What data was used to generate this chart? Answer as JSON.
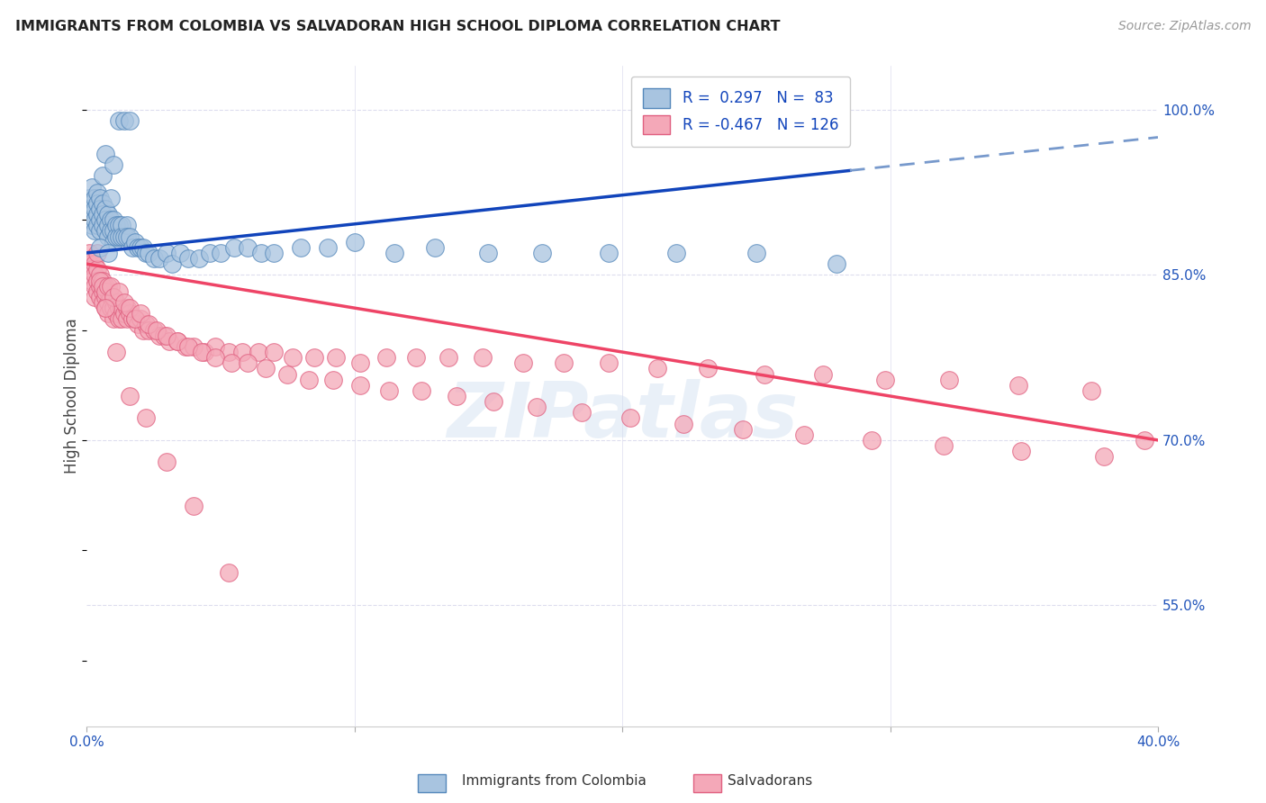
{
  "title": "IMMIGRANTS FROM COLOMBIA VS SALVADORAN HIGH SCHOOL DIPLOMA CORRELATION CHART",
  "source": "Source: ZipAtlas.com",
  "ylabel": "High School Diploma",
  "ytick_labels": [
    "55.0%",
    "70.0%",
    "85.0%",
    "100.0%"
  ],
  "ytick_vals": [
    0.55,
    0.7,
    0.85,
    1.0
  ],
  "xmin": 0.0,
  "xmax": 0.4,
  "ymin": 0.44,
  "ymax": 1.04,
  "legend_entries": [
    "Immigrants from Colombia",
    "Salvadorans"
  ],
  "colombia_color": "#a8c4e0",
  "salvador_color": "#f4a8b8",
  "colombia_edge": "#5588bb",
  "salvador_edge": "#e06080",
  "trendline_blue_solid": "#1144bb",
  "trendline_blue_dashed": "#7799cc",
  "trendline_pink_solid": "#ee4466",
  "background_color": "#ffffff",
  "grid_color": "#ddddee",
  "colombia_x": [
    0.001,
    0.001,
    0.001,
    0.002,
    0.002,
    0.002,
    0.002,
    0.003,
    0.003,
    0.003,
    0.003,
    0.004,
    0.004,
    0.004,
    0.004,
    0.005,
    0.005,
    0.005,
    0.005,
    0.006,
    0.006,
    0.006,
    0.007,
    0.007,
    0.007,
    0.008,
    0.008,
    0.008,
    0.009,
    0.009,
    0.01,
    0.01,
    0.01,
    0.011,
    0.011,
    0.012,
    0.012,
    0.013,
    0.013,
    0.014,
    0.015,
    0.015,
    0.016,
    0.017,
    0.018,
    0.019,
    0.02,
    0.021,
    0.022,
    0.023,
    0.025,
    0.027,
    0.03,
    0.032,
    0.035,
    0.038,
    0.042,
    0.046,
    0.05,
    0.055,
    0.06,
    0.065,
    0.07,
    0.08,
    0.09,
    0.1,
    0.115,
    0.13,
    0.15,
    0.17,
    0.195,
    0.22,
    0.25,
    0.28,
    0.005,
    0.006,
    0.007,
    0.008,
    0.009,
    0.01,
    0.012,
    0.014,
    0.016
  ],
  "colombia_y": [
    0.92,
    0.91,
    0.9,
    0.93,
    0.915,
    0.905,
    0.895,
    0.92,
    0.91,
    0.9,
    0.89,
    0.925,
    0.915,
    0.905,
    0.895,
    0.92,
    0.91,
    0.9,
    0.89,
    0.915,
    0.905,
    0.895,
    0.91,
    0.9,
    0.89,
    0.905,
    0.895,
    0.885,
    0.9,
    0.89,
    0.9,
    0.89,
    0.88,
    0.895,
    0.885,
    0.895,
    0.885,
    0.895,
    0.885,
    0.885,
    0.895,
    0.885,
    0.885,
    0.875,
    0.88,
    0.875,
    0.875,
    0.875,
    0.87,
    0.87,
    0.865,
    0.865,
    0.87,
    0.86,
    0.87,
    0.865,
    0.865,
    0.87,
    0.87,
    0.875,
    0.875,
    0.87,
    0.87,
    0.875,
    0.875,
    0.88,
    0.87,
    0.875,
    0.87,
    0.87,
    0.87,
    0.87,
    0.87,
    0.86,
    0.875,
    0.94,
    0.96,
    0.87,
    0.92,
    0.95,
    0.99,
    0.99,
    0.99
  ],
  "salvador_x": [
    0.001,
    0.001,
    0.002,
    0.002,
    0.002,
    0.003,
    0.003,
    0.003,
    0.003,
    0.004,
    0.004,
    0.004,
    0.005,
    0.005,
    0.005,
    0.006,
    0.006,
    0.006,
    0.007,
    0.007,
    0.007,
    0.008,
    0.008,
    0.008,
    0.009,
    0.009,
    0.01,
    0.01,
    0.01,
    0.011,
    0.011,
    0.012,
    0.012,
    0.013,
    0.013,
    0.014,
    0.015,
    0.015,
    0.016,
    0.017,
    0.018,
    0.019,
    0.02,
    0.021,
    0.022,
    0.023,
    0.025,
    0.027,
    0.029,
    0.031,
    0.034,
    0.037,
    0.04,
    0.044,
    0.048,
    0.053,
    0.058,
    0.064,
    0.07,
    0.077,
    0.085,
    0.093,
    0.102,
    0.112,
    0.123,
    0.135,
    0.148,
    0.163,
    0.178,
    0.195,
    0.213,
    0.232,
    0.253,
    0.275,
    0.298,
    0.322,
    0.348,
    0.375,
    0.395,
    0.005,
    0.006,
    0.007,
    0.008,
    0.009,
    0.01,
    0.012,
    0.014,
    0.016,
    0.018,
    0.02,
    0.023,
    0.026,
    0.03,
    0.034,
    0.038,
    0.043,
    0.048,
    0.054,
    0.06,
    0.067,
    0.075,
    0.083,
    0.092,
    0.102,
    0.113,
    0.125,
    0.138,
    0.152,
    0.168,
    0.185,
    0.203,
    0.223,
    0.245,
    0.268,
    0.293,
    0.32,
    0.349,
    0.38,
    0.004,
    0.007,
    0.011,
    0.016,
    0.022,
    0.03,
    0.04,
    0.053
  ],
  "salvador_y": [
    0.87,
    0.86,
    0.865,
    0.855,
    0.845,
    0.86,
    0.85,
    0.84,
    0.83,
    0.855,
    0.845,
    0.835,
    0.85,
    0.84,
    0.83,
    0.845,
    0.835,
    0.825,
    0.84,
    0.83,
    0.82,
    0.835,
    0.825,
    0.815,
    0.83,
    0.82,
    0.83,
    0.82,
    0.81,
    0.825,
    0.815,
    0.82,
    0.81,
    0.82,
    0.81,
    0.815,
    0.82,
    0.81,
    0.815,
    0.81,
    0.81,
    0.805,
    0.81,
    0.8,
    0.805,
    0.8,
    0.8,
    0.795,
    0.795,
    0.79,
    0.79,
    0.785,
    0.785,
    0.78,
    0.785,
    0.78,
    0.78,
    0.78,
    0.78,
    0.775,
    0.775,
    0.775,
    0.77,
    0.775,
    0.775,
    0.775,
    0.775,
    0.77,
    0.77,
    0.77,
    0.765,
    0.765,
    0.76,
    0.76,
    0.755,
    0.755,
    0.75,
    0.745,
    0.7,
    0.845,
    0.84,
    0.835,
    0.84,
    0.84,
    0.83,
    0.835,
    0.825,
    0.82,
    0.81,
    0.815,
    0.805,
    0.8,
    0.795,
    0.79,
    0.785,
    0.78,
    0.775,
    0.77,
    0.77,
    0.765,
    0.76,
    0.755,
    0.755,
    0.75,
    0.745,
    0.745,
    0.74,
    0.735,
    0.73,
    0.725,
    0.72,
    0.715,
    0.71,
    0.705,
    0.7,
    0.695,
    0.69,
    0.685,
    0.87,
    0.82,
    0.78,
    0.74,
    0.72,
    0.68,
    0.64,
    0.58
  ],
  "trendline_blue_x0": 0.0,
  "trendline_blue_y0": 0.87,
  "trendline_blue_x1": 0.4,
  "trendline_blue_y1": 0.975,
  "trendline_blue_solid_end": 0.285,
  "trendline_pink_x0": 0.0,
  "trendline_pink_y0": 0.86,
  "trendline_pink_x1": 0.4,
  "trendline_pink_y1": 0.7
}
